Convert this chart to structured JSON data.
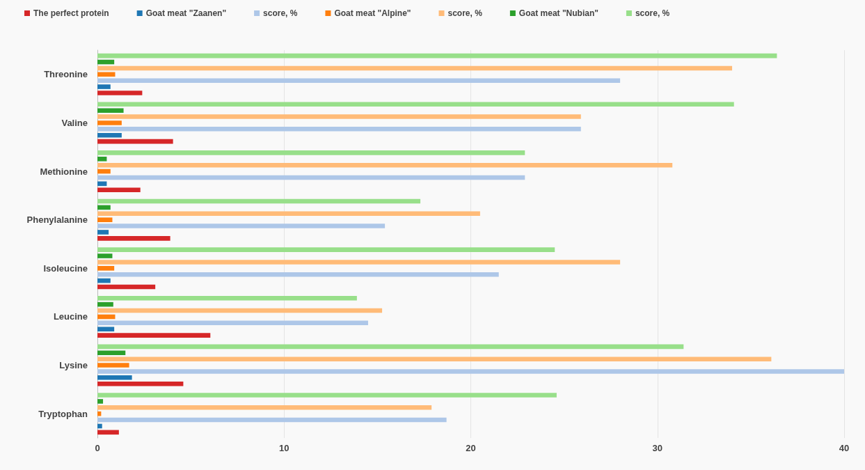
{
  "chart_data": {
    "type": "bar",
    "orientation": "horizontal",
    "categories": [
      "Threonine",
      "Valine",
      "Methionine",
      "Phenylalanine",
      "Isoleucine",
      "Leucine",
      "Lysine",
      "Tryptophan"
    ],
    "series": [
      {
        "name": "The perfect protein",
        "color": "#d62728",
        "values": [
          2.4,
          4.05,
          2.3,
          3.9,
          3.1,
          6.05,
          4.6,
          1.15
        ]
      },
      {
        "name": "Goat meat \"Zaanen\"",
        "color": "#1f77b4",
        "values": [
          0.7,
          1.3,
          0.5,
          0.6,
          0.7,
          0.9,
          1.85,
          0.25
        ]
      },
      {
        "name": "score, %",
        "color": "#aec7e8",
        "values": [
          28.0,
          25.9,
          22.9,
          15.4,
          21.5,
          14.5,
          40.0,
          18.7
        ]
      },
      {
        "name": "Goat meat \"Alpine\"",
        "color": "#ff7f0e",
        "values": [
          0.95,
          1.3,
          0.7,
          0.8,
          0.9,
          0.95,
          1.7,
          0.2
        ]
      },
      {
        "name": "score, %",
        "color": "#ffbb78",
        "values": [
          34.0,
          25.9,
          30.8,
          20.5,
          28.0,
          15.25,
          36.1,
          17.9
        ]
      },
      {
        "name": "Goat meat \"Nubian\"",
        "color": "#2ca02c",
        "values": [
          0.9,
          1.4,
          0.5,
          0.7,
          0.8,
          0.85,
          1.5,
          0.3
        ]
      },
      {
        "name": "score, %",
        "color": "#98df8a",
        "values": [
          36.4,
          34.1,
          22.9,
          17.3,
          24.5,
          13.9,
          31.4,
          24.6
        ]
      }
    ],
    "xlim": [
      0,
      40
    ],
    "xticks": [
      0,
      10,
      20,
      30,
      40
    ],
    "grid": "x",
    "legend": "top left"
  }
}
